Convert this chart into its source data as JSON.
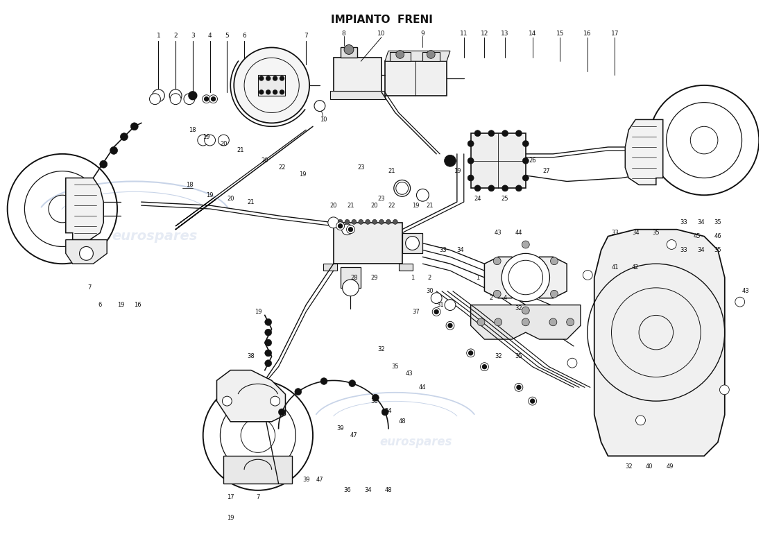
{
  "title": "IMPIANTO  FRENI",
  "bg": "#ffffff",
  "lc": "#111111",
  "wm_color": "#c8d4e8",
  "wm_alpha": 0.45,
  "fig_w": 11.0,
  "fig_h": 8.0,
  "dpi": 100
}
